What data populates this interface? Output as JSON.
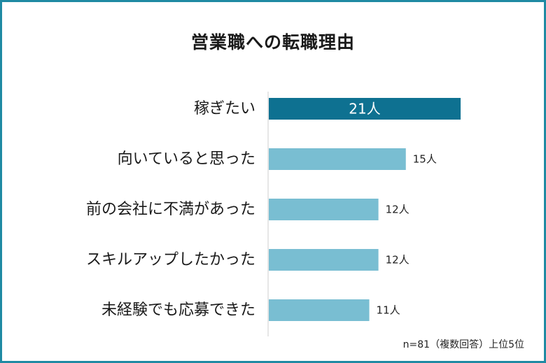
{
  "chart_data": {
    "type": "bar",
    "orientation": "horizontal",
    "title": "営業職への転職理由",
    "categories": [
      "稼ぎたい",
      "向いていると思った",
      "前の会社に不満があった",
      "スキルアップしたかった",
      "未経験でも応募できた"
    ],
    "values": [
      21,
      15,
      12,
      12,
      11
    ],
    "value_labels": [
      "21人",
      "15人",
      "12人",
      "12人",
      "11人"
    ],
    "xlim": [
      0,
      24
    ],
    "unit": "人",
    "grid": false,
    "colors": {
      "highlight": "#0e7191",
      "bar": "#79bed2",
      "border": "#1f8aa3",
      "axis": "#cccccc"
    }
  },
  "note": "n=81（複数回答）上位5位"
}
